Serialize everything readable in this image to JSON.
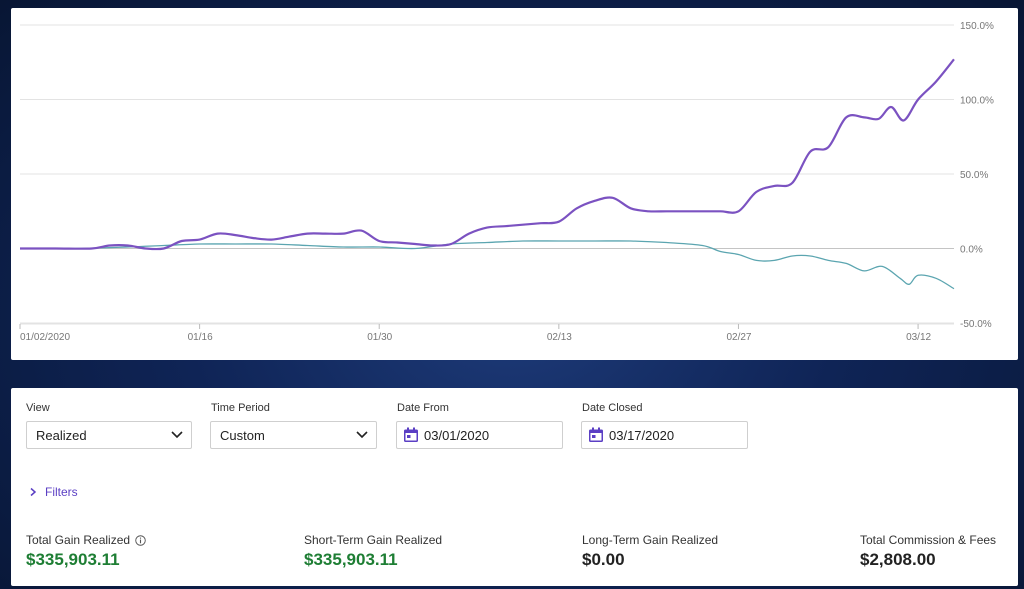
{
  "chart_data": {
    "type": "line",
    "x_tick_labels": [
      "01/02/2020",
      "01/16",
      "01/30",
      "02/13",
      "02/27",
      "03/12"
    ],
    "y_tick_labels": [
      "150.0%",
      "100.0%",
      "50.0%",
      "0.0%",
      "-50.0%"
    ],
    "y_ticks": [
      150,
      100,
      50,
      0,
      -50
    ],
    "ylim": [
      -50,
      150
    ],
    "xlim": [
      0,
      52
    ],
    "x_tick_positions": [
      0,
      10,
      20,
      30,
      40,
      50
    ],
    "grid": true,
    "series": [
      {
        "color": "#7b52c1",
        "x": [
          0,
          2,
          4,
          5,
          6,
          7,
          8,
          9,
          10,
          11,
          12,
          13,
          14,
          15,
          16,
          17,
          18,
          19,
          20,
          21,
          22,
          23,
          24,
          25,
          26,
          27,
          28,
          29,
          30,
          31,
          32,
          33,
          34,
          35,
          36,
          37,
          38,
          39,
          40,
          41,
          42,
          43,
          44,
          45,
          46,
          47,
          47.8,
          48.5,
          49.2,
          50,
          51,
          52
        ],
        "y": [
          0,
          0,
          0,
          2,
          2,
          0,
          0,
          5,
          6,
          10,
          9,
          7,
          6,
          8,
          10,
          10,
          10,
          12,
          5,
          4,
          3,
          2,
          3,
          10,
          14,
          15,
          16,
          17,
          18,
          27,
          32,
          34,
          27,
          25,
          25,
          25,
          25,
          25,
          25,
          38,
          42,
          44,
          65,
          68,
          88,
          88,
          87,
          95,
          86,
          100,
          112,
          127
        ]
      },
      {
        "color": "#5ba5b0",
        "x": [
          0,
          3,
          6,
          8,
          10,
          12,
          14,
          16,
          18,
          20,
          22,
          24,
          26,
          28,
          30,
          32,
          34,
          36,
          38,
          39,
          40,
          41,
          42,
          43,
          44,
          45,
          46,
          47,
          48,
          49,
          49.5,
          50,
          51,
          52
        ],
        "y": [
          0,
          0,
          1,
          2,
          3,
          3,
          3,
          2,
          1,
          1,
          0,
          3,
          4,
          5,
          5,
          5,
          5,
          4,
          2,
          -2,
          -4,
          -8,
          -8,
          -5,
          -5,
          -8,
          -10,
          -15,
          -12,
          -20,
          -24,
          -18,
          -20,
          -27
        ]
      }
    ]
  },
  "controls": {
    "view": {
      "label": "View",
      "value": "Realized"
    },
    "time_period": {
      "label": "Time Period",
      "value": "Custom"
    },
    "date_from": {
      "label": "Date From",
      "value": "03/01/2020"
    },
    "date_closed": {
      "label": "Date Closed",
      "value": "03/17/2020"
    },
    "filters_label": "Filters"
  },
  "stats": {
    "total_gain": {
      "label": "Total Gain Realized",
      "value": "$335,903.11"
    },
    "short_term": {
      "label": "Short-Term Gain Realized",
      "value": "$335,903.11"
    },
    "long_term": {
      "label": "Long-Term Gain Realized",
      "value": "$0.00"
    },
    "commission": {
      "label": "Total Commission & Fees",
      "value": "$2,808.00"
    }
  },
  "colors": {
    "accent": "#5b3fc4",
    "gain": "#1e7e34"
  }
}
